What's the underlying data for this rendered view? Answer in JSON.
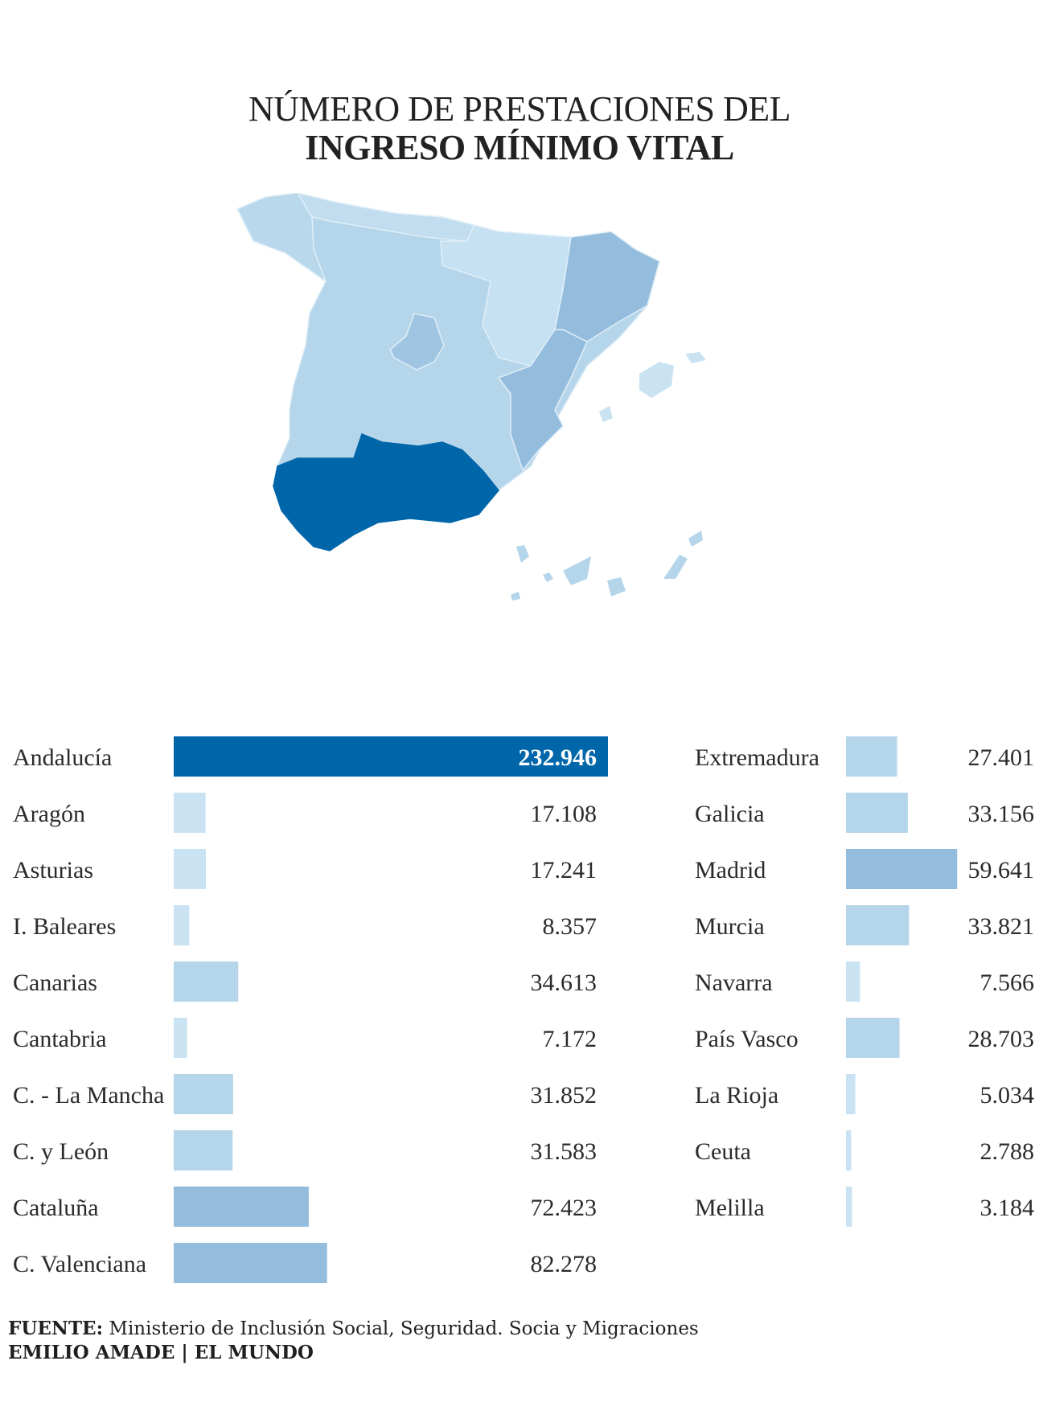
{
  "header": {
    "title_line1": "NÚMERO DE PRESTACIONES DEL",
    "title_line2": "INGRESO MÍNIMO VITAL"
  },
  "colors": {
    "max": "#0066aa",
    "high": "#93bcdd",
    "mid": "#b5d5ea",
    "low": "#c9e3f3"
  },
  "chart_data": {
    "type": "bar",
    "orientation": "horizontal",
    "title": "NÚMERO DE PRESTACIONES DEL INGRESO MÍNIMO VITAL",
    "xlim": [
      0,
      232946
    ],
    "categories": [
      "Andalucía",
      "Aragón",
      "Asturias",
      "I. Baleares",
      "Canarias",
      "Cantabria",
      "C. - La Mancha",
      "C. y León",
      "Cataluña",
      "C. Valenciana",
      "Extremadura",
      "Galicia",
      "Madrid",
      "Murcia",
      "Navarra",
      "País Vasco",
      "La Rioja",
      "Ceuta",
      "Melilla"
    ],
    "values": [
      232946,
      17108,
      17241,
      8357,
      34613,
      7172,
      31852,
      31583,
      72423,
      82278,
      27401,
      33156,
      59641,
      33821,
      7566,
      28703,
      5034,
      2788,
      3184
    ],
    "value_labels": [
      "232.946",
      "17.108",
      "17.241",
      "8.357",
      "34.613",
      "7.172",
      "31.852",
      "31.583",
      "72.423",
      "82.278",
      "27.401",
      "33.156",
      "59.641",
      "33.821",
      "7.566",
      "28.703",
      "5.034",
      "2.788",
      "3.184"
    ],
    "columns": 2,
    "grid": false,
    "legend": false
  },
  "footer": {
    "source_label": "FUENTE:",
    "source_text": "Ministerio de Inclusión Social, Seguridad. Socia y Migraciones",
    "credit": "EMILIO AMADE | EL MUNDO"
  }
}
